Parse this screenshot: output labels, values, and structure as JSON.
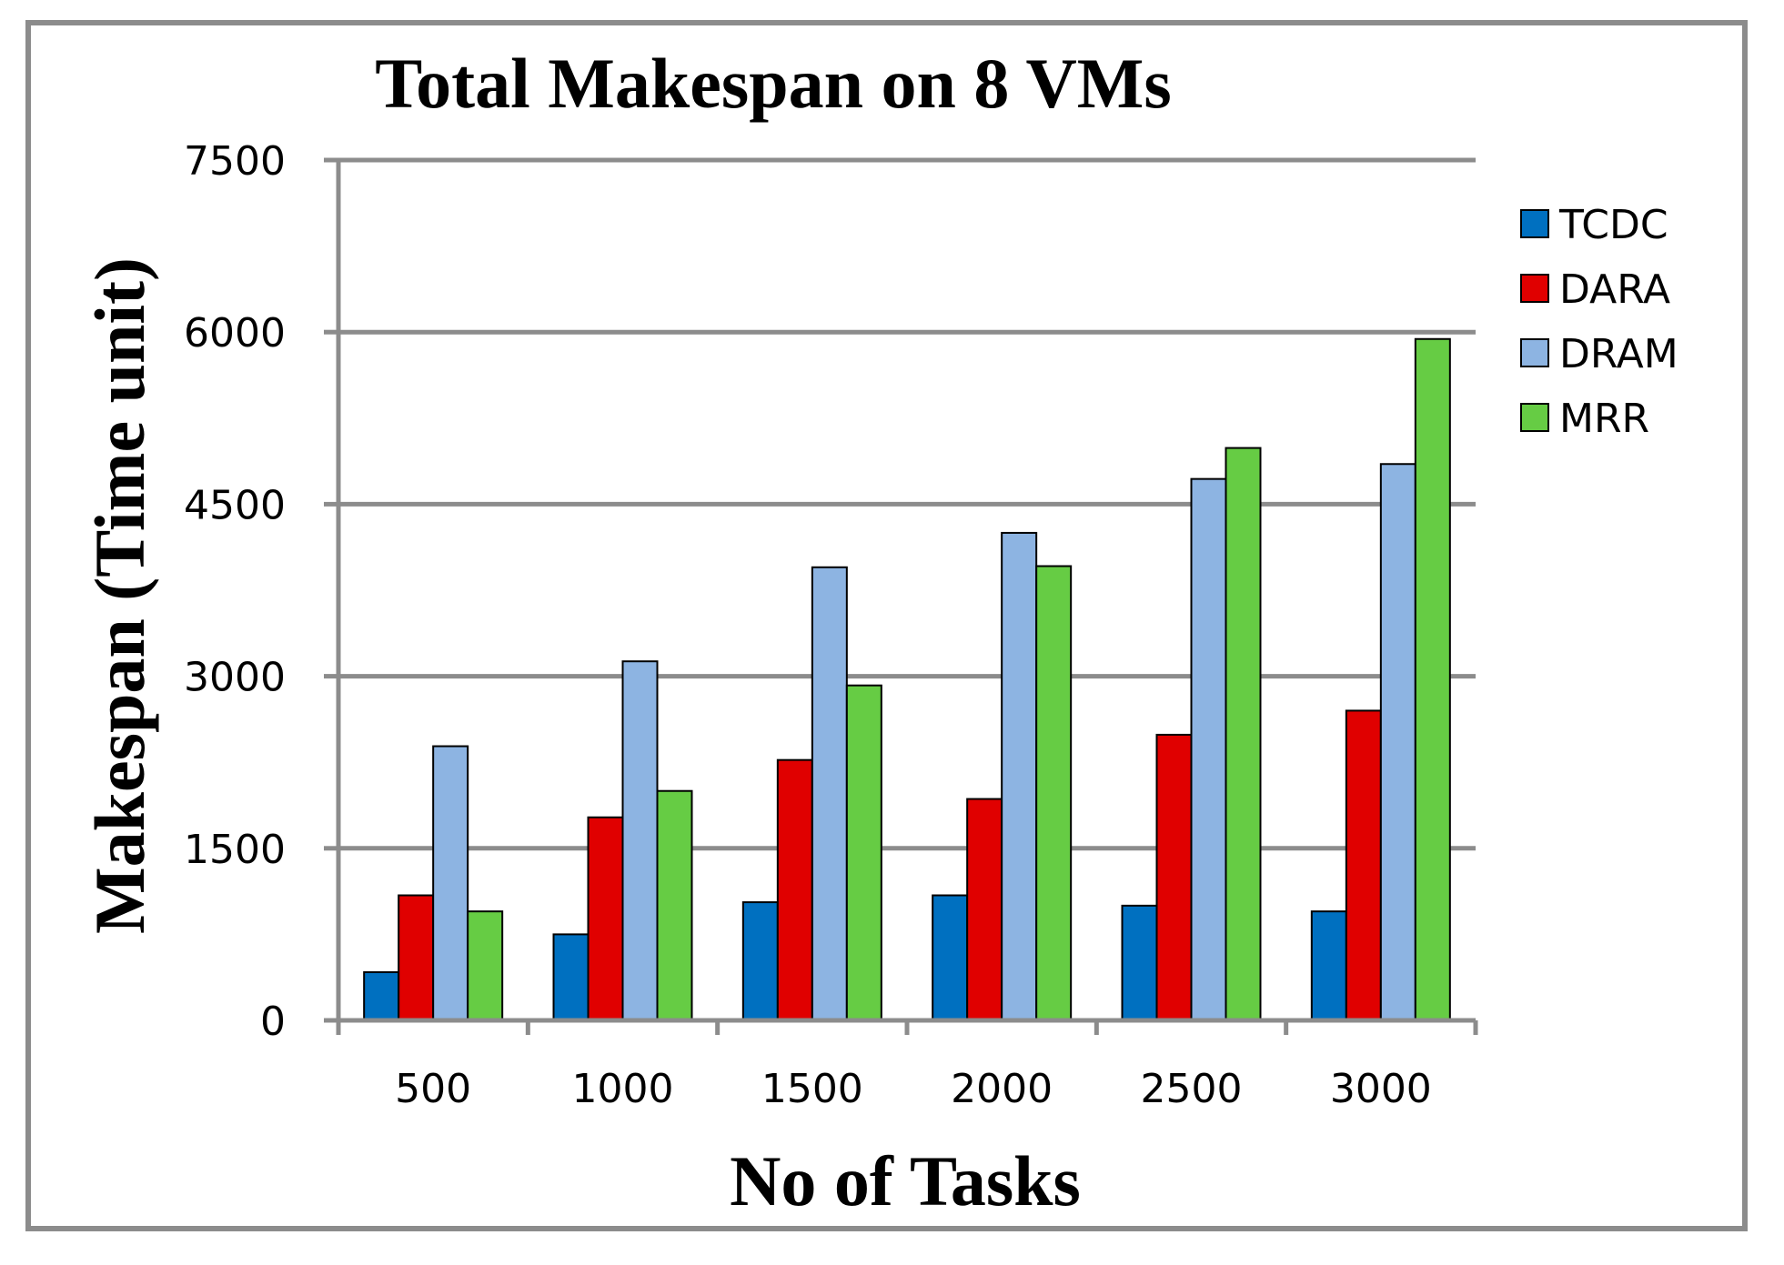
{
  "chart_data": {
    "type": "bar",
    "title": "Total Makespan on 8 VMs",
    "xlabel": "No of Tasks",
    "ylabel": "Makespan (Time unit)",
    "categories": [
      "500",
      "1000",
      "1500",
      "2000",
      "2500",
      "3000"
    ],
    "ylim": [
      0,
      7500
    ],
    "yticks": [
      0,
      1500,
      3000,
      4500,
      6000,
      7500
    ],
    "grid": true,
    "legend_position": "top-right",
    "series": [
      {
        "name": "TCDC",
        "color": "#0070c0",
        "values": [
          420,
          750,
          1030,
          1090,
          1000,
          950
        ]
      },
      {
        "name": "DARA",
        "color": "#e00000",
        "values": [
          1090,
          1770,
          2270,
          1930,
          2490,
          2700
        ]
      },
      {
        "name": "DRAM",
        "color": "#8db4e2",
        "values": [
          2390,
          3130,
          3950,
          4250,
          4720,
          4850
        ]
      },
      {
        "name": "MRR",
        "color": "#66cc44",
        "values": [
          950,
          2000,
          2920,
          3960,
          4990,
          5940
        ]
      }
    ]
  }
}
